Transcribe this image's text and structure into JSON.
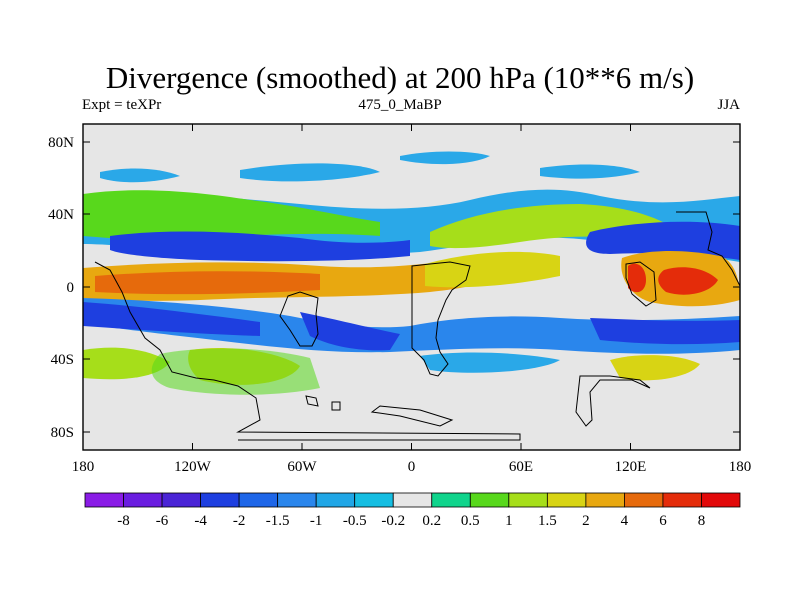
{
  "title": "Divergence (smoothed) at 200 hPa (10**6 m/s)",
  "subtitle_left": "Expt = teXPr",
  "subtitle_center": "475_0_MaBP",
  "subtitle_right": "JJA",
  "chart_data": {
    "type": "heatmap",
    "x_ticks": [
      "180",
      "120W",
      "60W",
      "0",
      "60E",
      "120E",
      "180"
    ],
    "y_ticks": [
      "80N",
      "40N",
      "0",
      "40S",
      "80S"
    ],
    "colorbar_labels": [
      "-8",
      "-6",
      "-4",
      "-2",
      "-1.5",
      "-1",
      "-0.5",
      "-0.2",
      "0.2",
      "0.5",
      "1",
      "1.5",
      "2",
      "4",
      "6",
      "8"
    ],
    "colorbar_colors": [
      "#8a1ce6",
      "#6a1de0",
      "#4a24d6",
      "#1e3fe0",
      "#1e66e8",
      "#2a86ec",
      "#20a6e6",
      "#16bee2",
      "#e6e6e6",
      "#10d48c",
      "#58d81c",
      "#a6de1a",
      "#d8d414",
      "#e8a810",
      "#e66a0c",
      "#e42c0a",
      "#e2090a"
    ]
  }
}
